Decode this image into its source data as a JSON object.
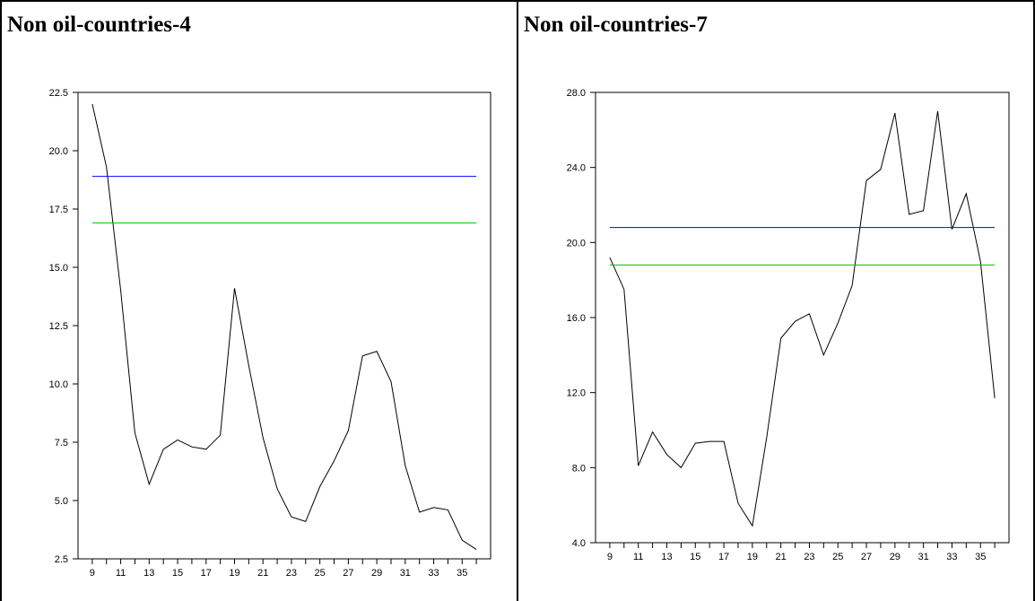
{
  "panels": [
    {
      "title": "Non oil-countries-4"
    },
    {
      "title": "Non oil-countries-7"
    }
  ],
  "chart_data": [
    {
      "type": "line",
      "title": "Non oil-countries-4",
      "xlabel": "",
      "ylabel": "",
      "x": [
        9,
        10,
        11,
        12,
        13,
        14,
        15,
        16,
        17,
        18,
        19,
        20,
        21,
        22,
        23,
        24,
        25,
        26,
        27,
        28,
        29,
        30,
        31,
        32,
        33,
        34,
        35,
        36
      ],
      "xtick_labels": [
        "9",
        "11",
        "13",
        "15",
        "17",
        "19",
        "21",
        "23",
        "25",
        "27",
        "29",
        "31",
        "33",
        "35"
      ],
      "xlim": [
        8,
        37
      ],
      "ylim": [
        2.5,
        22.5
      ],
      "ytick_labels": [
        "2.5",
        "5.0",
        "7.5",
        "10.0",
        "12.5",
        "15.0",
        "17.5",
        "20.0",
        "22.5"
      ],
      "ytick_values": [
        2.5,
        5.0,
        7.5,
        10.0,
        12.5,
        15.0,
        17.5,
        20.0,
        22.5
      ],
      "grid": false,
      "series": [
        {
          "color": "#000000",
          "values": [
            22.0,
            19.3,
            14.0,
            7.9,
            5.7,
            7.2,
            7.6,
            7.3,
            7.2,
            7.8,
            14.1,
            10.8,
            7.7,
            5.5,
            4.3,
            4.1,
            5.6,
            6.7,
            8.0,
            11.2,
            11.4,
            10.1,
            6.5,
            4.5,
            4.7,
            4.6,
            3.3,
            2.9
          ]
        },
        {
          "color": "#0000ff",
          "values": [
            18.9,
            18.9,
            18.9,
            18.9,
            18.9,
            18.9,
            18.9,
            18.9,
            18.9,
            18.9,
            18.9,
            18.9,
            18.9,
            18.9,
            18.9,
            18.9,
            18.9,
            18.9,
            18.9,
            18.9,
            18.9,
            18.9,
            18.9,
            18.9,
            18.9,
            18.9,
            18.9,
            18.9
          ]
        },
        {
          "color": "#00c000",
          "values": [
            16.9,
            16.9,
            16.9,
            16.9,
            16.9,
            16.9,
            16.9,
            16.9,
            16.9,
            16.9,
            16.9,
            16.9,
            16.9,
            16.9,
            16.9,
            16.9,
            16.9,
            16.9,
            16.9,
            16.9,
            16.9,
            16.9,
            16.9,
            16.9,
            16.9,
            16.9,
            16.9,
            16.9
          ]
        }
      ]
    },
    {
      "type": "line",
      "title": "Non oil-countries-7",
      "xlabel": "",
      "ylabel": "",
      "x": [
        9,
        10,
        11,
        12,
        13,
        14,
        15,
        16,
        17,
        18,
        19,
        20,
        21,
        22,
        23,
        24,
        25,
        26,
        27,
        28,
        29,
        30,
        31,
        32,
        33,
        34,
        35,
        36
      ],
      "xtick_labels": [
        "9",
        "11",
        "13",
        "15",
        "17",
        "19",
        "21",
        "23",
        "25",
        "27",
        "29",
        "31",
        "33",
        "35"
      ],
      "xlim": [
        8,
        37
      ],
      "ylim": [
        4.0,
        28.0
      ],
      "ytick_labels": [
        "4.0",
        "8.0",
        "12.0",
        "16.0",
        "20.0",
        "24.0",
        "28.0"
      ],
      "ytick_values": [
        4.0,
        8.0,
        12.0,
        16.0,
        20.0,
        24.0,
        28.0
      ],
      "grid": false,
      "series": [
        {
          "color": "#000000",
          "values": [
            19.2,
            17.5,
            8.1,
            9.9,
            8.7,
            8.0,
            9.3,
            9.4,
            9.4,
            6.1,
            4.9,
            9.6,
            14.9,
            15.8,
            16.2,
            14.0,
            15.7,
            17.7,
            23.3,
            23.9,
            26.9,
            21.5,
            21.7,
            27.0,
            20.7,
            22.6,
            19.0,
            11.7
          ]
        },
        {
          "color": "#0000ff",
          "values": [
            20.8,
            20.8,
            20.8,
            20.8,
            20.8,
            20.8,
            20.8,
            20.8,
            20.8,
            20.8,
            20.8,
            20.8,
            20.8,
            20.8,
            20.8,
            20.8,
            20.8,
            20.8,
            20.8,
            20.8,
            20.8,
            20.8,
            20.8,
            20.8,
            20.8,
            20.8,
            20.8,
            20.8
          ]
        },
        {
          "color": "#00c000",
          "values": [
            18.8,
            18.8,
            18.8,
            18.8,
            18.8,
            18.8,
            18.8,
            18.8,
            18.8,
            18.8,
            18.8,
            18.8,
            18.8,
            18.8,
            18.8,
            18.8,
            18.8,
            18.8,
            18.8,
            18.8,
            18.8,
            18.8,
            18.8,
            18.8,
            18.8,
            18.8,
            18.8,
            18.8
          ]
        }
      ]
    }
  ]
}
